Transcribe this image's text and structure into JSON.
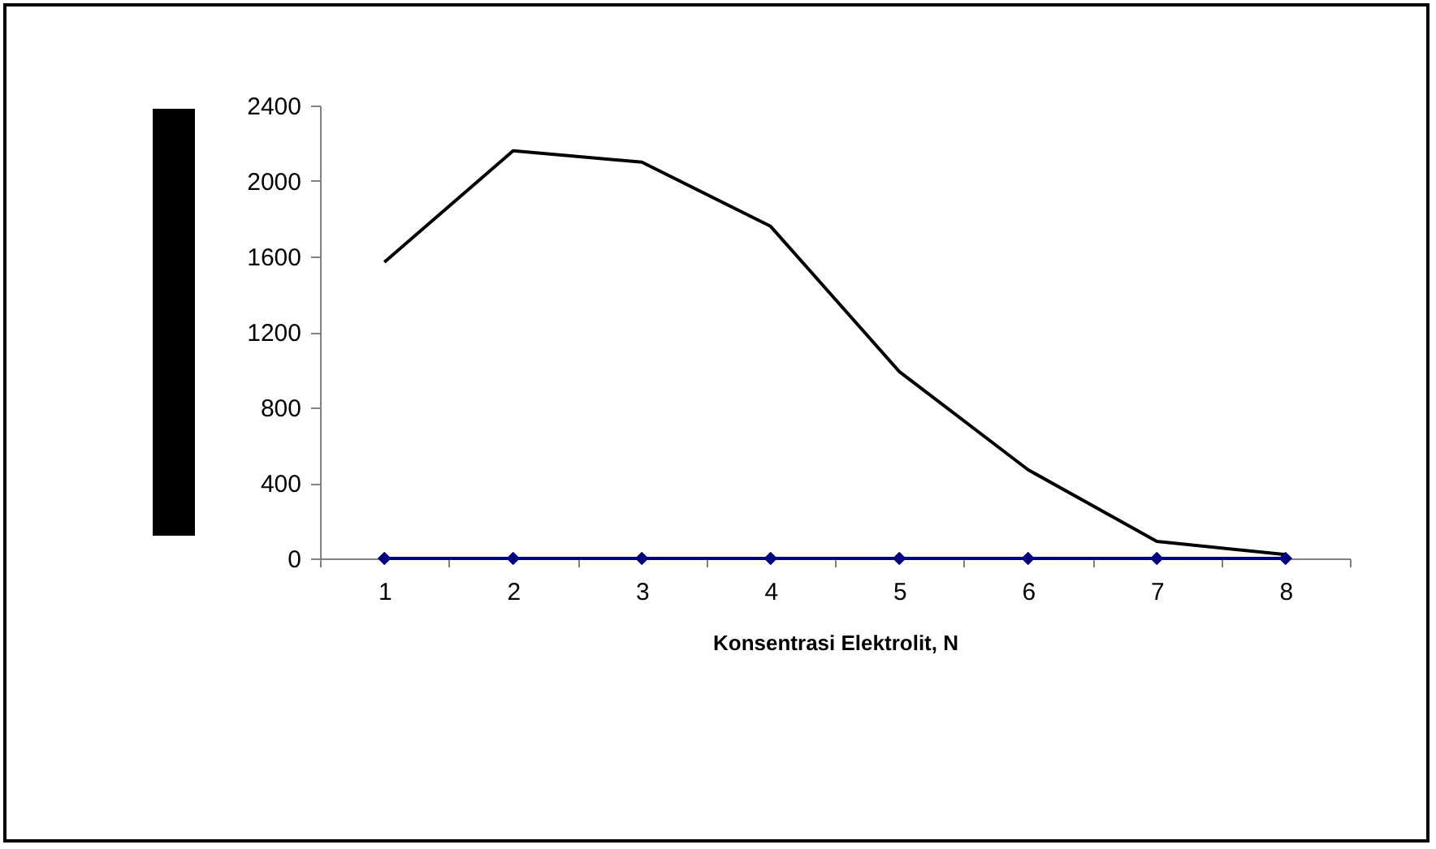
{
  "chart_data": {
    "type": "line",
    "xlabel": "Konsentrasi Elektrolit, N",
    "categories": [
      "1",
      "2",
      "3",
      "4",
      "5",
      "6",
      "7",
      "8"
    ],
    "series": [
      {
        "color": "#000000",
        "marker": "none",
        "values": [
          1570,
          2160,
          2100,
          1760,
          990,
          470,
          90,
          20
        ]
      },
      {
        "color": "#000080",
        "marker": "diamond",
        "values": [
          0,
          0,
          0,
          0,
          0,
          0,
          0,
          0
        ]
      }
    ],
    "ylim": [
      0,
      2400
    ],
    "yticks": [
      0,
      400,
      800,
      1200,
      1600,
      2000,
      2400
    ],
    "grid": false
  }
}
